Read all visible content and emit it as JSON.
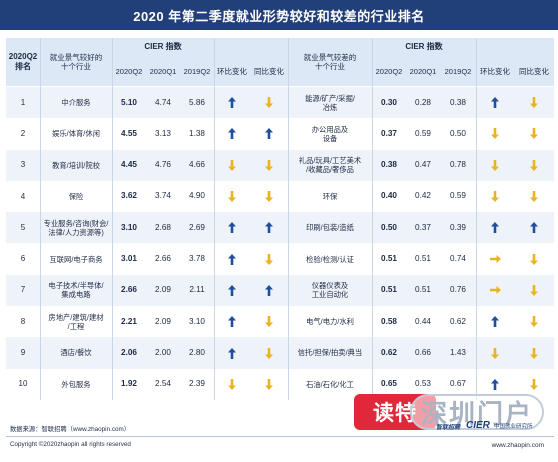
{
  "title": "2020 年第二季度就业形势较好和较差的行业排名",
  "header": {
    "rank_label": "2020Q2\n排名",
    "good_industry_label": "就业景气较好的\n十个行业",
    "bad_industry_label": "就业景气较差的\n十个行业",
    "cier_label": "CIER 指数",
    "q2_2020": "2020Q2",
    "q1_2020": "2020Q1",
    "q2_2019": "2019Q2",
    "qoq_label": "环比变化",
    "yoy_label": "同比变化"
  },
  "colors": {
    "title_bg": "#213f78",
    "header_bg": "#dce8f5",
    "up_arrow": "#1f4f9c",
    "down_arrow": "#e8b423",
    "flat_arrow": "#e8b423"
  },
  "rows": [
    {
      "rank": "1",
      "good": "中介服务",
      "g_q2": "5.10",
      "g_q1": "4.74",
      "g_y": "5.86",
      "g_qoq": "up",
      "g_yoy": "down",
      "bad": "能源/矿产/采掘/\n冶炼",
      "b_q2": "0.30",
      "b_q1": "0.28",
      "b_y": "0.38",
      "b_qoq": "up",
      "b_yoy": "down"
    },
    {
      "rank": "2",
      "good": "娱乐/体育/休闲",
      "g_q2": "4.55",
      "g_q1": "3.13",
      "g_y": "1.38",
      "g_qoq": "up",
      "g_yoy": "up",
      "bad": "办公用品及\n设备",
      "b_q2": "0.37",
      "b_q1": "0.59",
      "b_y": "0.50",
      "b_qoq": "down",
      "b_yoy": "down"
    },
    {
      "rank": "3",
      "good": "教育/培训/院校",
      "g_q2": "4.45",
      "g_q1": "4.76",
      "g_y": "4.66",
      "g_qoq": "down",
      "g_yoy": "down",
      "bad": "礼品/玩具/工艺美术\n/收藏品/奢侈品",
      "b_q2": "0.38",
      "b_q1": "0.47",
      "b_y": "0.78",
      "b_qoq": "down",
      "b_yoy": "down"
    },
    {
      "rank": "4",
      "good": "保险",
      "g_q2": "3.62",
      "g_q1": "3.74",
      "g_y": "4.90",
      "g_qoq": "down",
      "g_yoy": "down",
      "bad": "环保",
      "b_q2": "0.40",
      "b_q1": "0.42",
      "b_y": "0.59",
      "b_qoq": "down",
      "b_yoy": "down"
    },
    {
      "rank": "5",
      "good": "专业服务/咨询(财会/\n法律/人力资源等)",
      "g_q2": "3.10",
      "g_q1": "2.68",
      "g_y": "2.69",
      "g_qoq": "up",
      "g_yoy": "up",
      "bad": "印刷/包装/造纸",
      "b_q2": "0.50",
      "b_q1": "0.37",
      "b_y": "0.39",
      "b_qoq": "up",
      "b_yoy": "up"
    },
    {
      "rank": "6",
      "good": "互联网/电子商务",
      "g_q2": "3.01",
      "g_q1": "2.66",
      "g_y": "3.78",
      "g_qoq": "up",
      "g_yoy": "down",
      "bad": "检验/检测/认证",
      "b_q2": "0.51",
      "b_q1": "0.51",
      "b_y": "0.74",
      "b_qoq": "flat",
      "b_yoy": "down"
    },
    {
      "rank": "7",
      "good": "电子技术/半导体/\n集成电路",
      "g_q2": "2.66",
      "g_q1": "2.09",
      "g_y": "2.11",
      "g_qoq": "up",
      "g_yoy": "up",
      "bad": "仪器仪表及\n工业自动化",
      "b_q2": "0.51",
      "b_q1": "0.51",
      "b_y": "0.76",
      "b_qoq": "flat",
      "b_yoy": "down"
    },
    {
      "rank": "8",
      "good": "房地产/建筑/建材\n/工程",
      "g_q2": "2.21",
      "g_q1": "2.09",
      "g_y": "3.10",
      "g_qoq": "up",
      "g_yoy": "down",
      "bad": "电气/电力/水利",
      "b_q2": "0.58",
      "b_q1": "0.44",
      "b_y": "0.62",
      "b_qoq": "up",
      "b_yoy": "down"
    },
    {
      "rank": "9",
      "good": "酒店/餐饮",
      "g_q2": "2.06",
      "g_q1": "2.00",
      "g_y": "2.80",
      "g_qoq": "up",
      "g_yoy": "down",
      "bad": "信托/担保/拍卖/典当",
      "b_q2": "0.62",
      "b_q1": "0.66",
      "b_y": "1.43",
      "b_qoq": "down",
      "b_yoy": "down"
    },
    {
      "rank": "10",
      "good": "外包服务",
      "g_q2": "1.92",
      "g_q1": "2.54",
      "g_y": "2.39",
      "g_qoq": "down",
      "g_yoy": "down",
      "bad": "石油/石化/化工",
      "b_q2": "0.65",
      "b_q1": "0.53",
      "b_y": "0.67",
      "b_qoq": "up",
      "b_yoy": "down"
    }
  ],
  "footer": {
    "source": "数据来源：智联招聘（www.zhaopin.com）",
    "copyright": "Copyright ©2020zhaopin all rights reserved",
    "url": "www.zhaopin.com",
    "watermark_left": "读特",
    "watermark_right": "深圳门户",
    "logo_zhaopin": "智联招聘",
    "logo_cier": "CIER",
    "logo_cier_sub": "中国就业研究所"
  }
}
